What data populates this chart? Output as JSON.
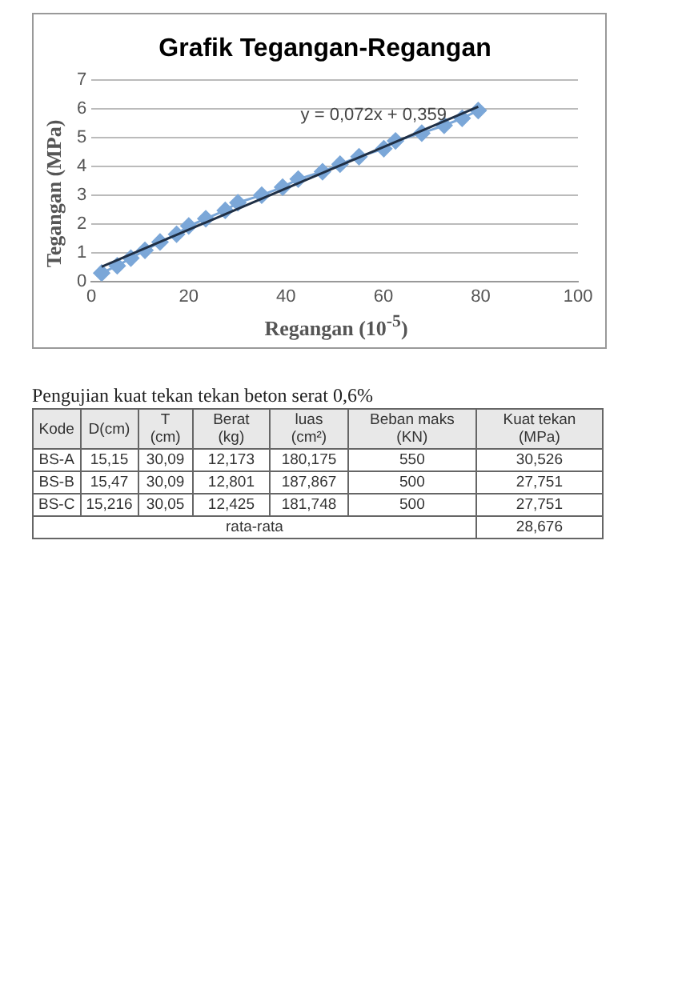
{
  "chart_data": [
    {
      "type": "scatter",
      "title": "Grafik Tegangan-Regangan",
      "xlabel": "Regangan (10$^{-5}$)",
      "ylabel": "Tegangan (MPa)",
      "xlim": [
        0,
        100
      ],
      "xticks": [
        0,
        20,
        40,
        60,
        80,
        100
      ],
      "ylim": [
        0,
        7
      ],
      "yticks": [
        0,
        1,
        2,
        3,
        4,
        5,
        6,
        7
      ],
      "grid": "y",
      "legend": false,
      "marker": "diamond",
      "line_style": "solid",
      "series": [
        {
          "type": "line",
          "color": "#7ba7d8",
          "x": [
            2.1,
            5.3,
            8.1,
            11,
            14.1,
            17.5,
            20,
            23.5,
            27.5,
            30.1,
            35,
            39.3,
            42.5,
            47.5,
            51.1,
            55,
            60.1,
            62.5,
            67.9,
            72.5,
            76.2,
            79.5
          ],
          "values": [
            0.29,
            0.54,
            0.81,
            1.08,
            1.37,
            1.64,
            1.93,
            2.18,
            2.47,
            2.74,
            3.0,
            3.28,
            3.56,
            3.82,
            4.08,
            4.34,
            4.62,
            4.89,
            5.16,
            5.43,
            5.68,
            5.95
          ]
        },
        {
          "type": "line",
          "color": "#1f2f45",
          "marker": "none",
          "x": [
            2.1,
            79.5
          ],
          "values": [
            0.51,
            6.08
          ]
        }
      ],
      "annotations": [
        "y = 0,072x + 0,359"
      ]
    },
    {
      "type": "other",
      "title": "Pengujian kuat tekan tekan beton serat 0,6%",
      "categories": [
        "Kode",
        "D(cm)",
        "T (cm)",
        "Berat (kg)",
        "luas (cm²)",
        "Beban maks (KN)",
        "Kuat tekan (MPa)"
      ],
      "cell_labels": [
        [
          "BS-A",
          "15,15",
          "30,09",
          "12,173",
          "180,175",
          "550",
          "30,526"
        ],
        [
          "BS-B",
          "15,47",
          "30,09",
          "12,801",
          "187,867",
          "500",
          "27,751"
        ],
        [
          "BS-C",
          "15,216",
          "30,05",
          "12,425",
          "181,748",
          "500",
          "27,751"
        ],
        [
          "rata-rata",
          null,
          null,
          null,
          null,
          null,
          "28,676"
        ]
      ]
    }
  ]
}
